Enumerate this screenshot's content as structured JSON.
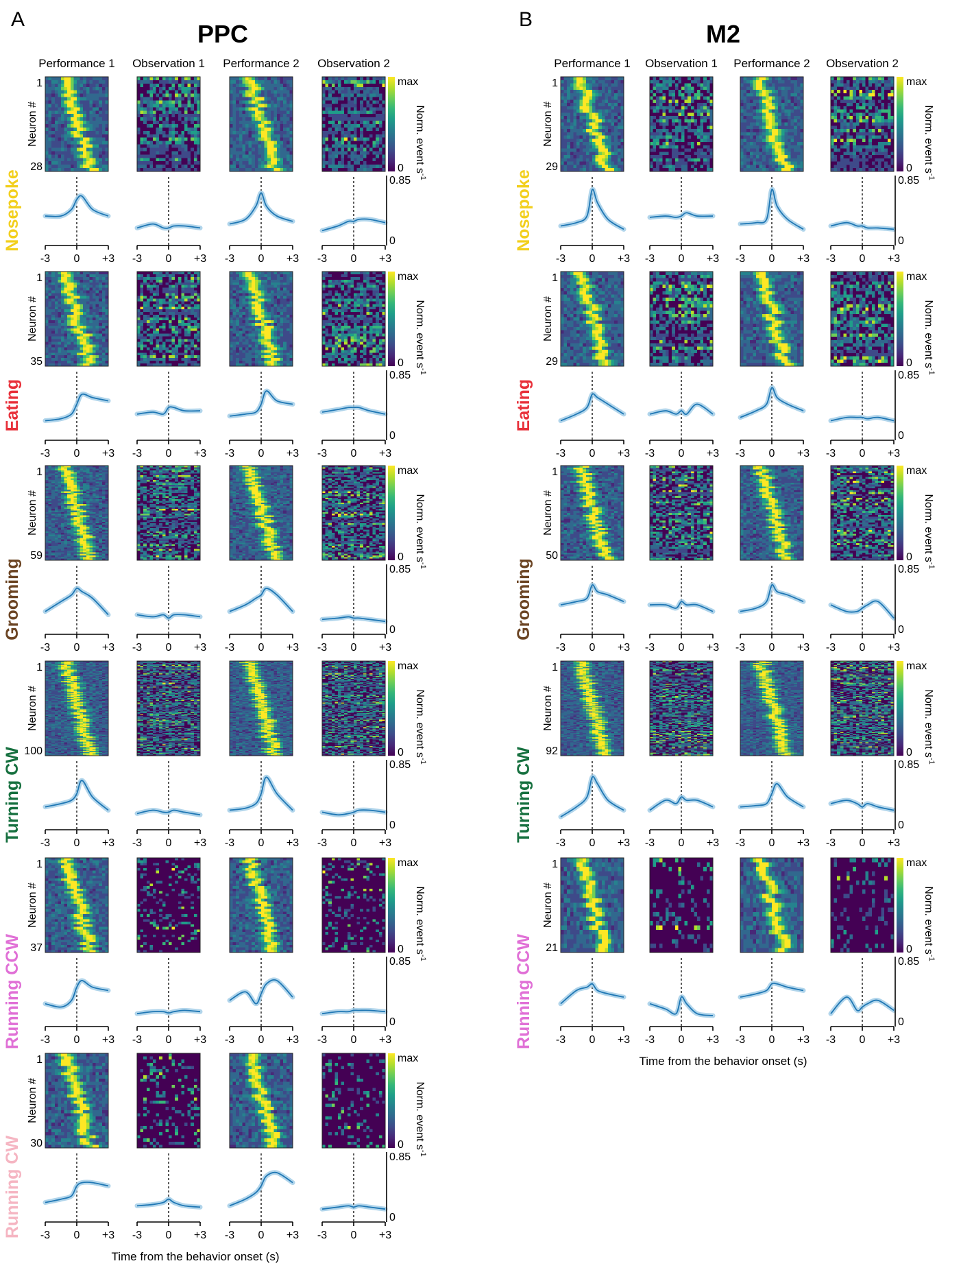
{
  "panel_letters": [
    "A",
    "B"
  ],
  "regions": [
    "PPC",
    "M2"
  ],
  "columns": [
    "Performance 1",
    "Observation 1",
    "Performance 2",
    "Observation 2"
  ],
  "behaviors": [
    {
      "name": "Nosepoke",
      "color": "#F2CF1D",
      "ppc_neurons": "28",
      "m2_neurons": "29"
    },
    {
      "name": "Eating",
      "color": "#E8303A",
      "ppc_neurons": "35",
      "m2_neurons": "29"
    },
    {
      "name": "Grooming",
      "color": "#6B4423",
      "ppc_neurons": "59",
      "m2_neurons": "50"
    },
    {
      "name": "Turning CW",
      "color": "#16703F",
      "ppc_neurons": "100",
      "m2_neurons": "92"
    },
    {
      "name": "Running CCW",
      "color": "#E070D6",
      "ppc_neurons": "37",
      "m2_neurons": "21"
    },
    {
      "name": "Running CW",
      "color": "#F5B5C2",
      "ppc_neurons": "30",
      "m2_neurons": ""
    }
  ],
  "raster_first_neuron": "1",
  "neuron_axis_label": "Neuron #",
  "colorbar": {
    "max_label": "max",
    "min_label": "0",
    "title": "Norm. event s",
    "title_superscript": "-1"
  },
  "trace": {
    "ymax_label": "0.85",
    "ymin_label": "0",
    "xticks": [
      "-3",
      "0",
      "+3"
    ],
    "line_color": "#1F77B4",
    "band_color": "#9ECAE6"
  },
  "xlabel": "Time from the behavior onset (s)",
  "colormap": "viridis",
  "chart_data": [
    {
      "type": "line",
      "region": "PPC",
      "behavior": "Nosepoke",
      "x": [
        -3,
        -1.5,
        -0.5,
        0,
        0.5,
        1.5,
        3
      ],
      "series": [
        {
          "name": "Performance 1",
          "values": [
            0.3,
            0.3,
            0.4,
            0.55,
            0.6,
            0.4,
            0.3
          ]
        },
        {
          "name": "Observation 1",
          "values": [
            0.12,
            0.18,
            0.12,
            0.12,
            0.15,
            0.15,
            0.12
          ]
        },
        {
          "name": "Performance 2",
          "values": [
            0.18,
            0.25,
            0.45,
            0.65,
            0.45,
            0.3,
            0.22
          ]
        },
        {
          "name": "Observation 2",
          "values": [
            0.08,
            0.15,
            0.22,
            0.22,
            0.25,
            0.25,
            0.2
          ]
        }
      ]
    },
    {
      "type": "line",
      "region": "PPC",
      "behavior": "Eating",
      "x": [
        -3,
        -1.5,
        -0.5,
        0,
        0.5,
        1.5,
        3
      ],
      "series": [
        {
          "name": "Performance 1",
          "values": [
            0.15,
            0.18,
            0.25,
            0.4,
            0.55,
            0.5,
            0.45
          ]
        },
        {
          "name": "Observation 1",
          "values": [
            0.25,
            0.28,
            0.25,
            0.35,
            0.35,
            0.3,
            0.3
          ]
        },
        {
          "name": "Performance 2",
          "values": [
            0.22,
            0.25,
            0.28,
            0.4,
            0.6,
            0.45,
            0.4
          ]
        },
        {
          "name": "Observation 2",
          "values": [
            0.28,
            0.32,
            0.35,
            0.35,
            0.35,
            0.3,
            0.25
          ]
        }
      ]
    },
    {
      "type": "line",
      "region": "PPC",
      "behavior": "Grooming",
      "x": [
        -3,
        -1.5,
        -0.5,
        0,
        0.5,
        1.5,
        3
      ],
      "series": [
        {
          "name": "Performance 1",
          "values": [
            0.2,
            0.35,
            0.45,
            0.55,
            0.5,
            0.4,
            0.15
          ]
        },
        {
          "name": "Observation 1",
          "values": [
            0.15,
            0.12,
            0.15,
            0.1,
            0.15,
            0.15,
            0.12
          ]
        },
        {
          "name": "Performance 2",
          "values": [
            0.2,
            0.3,
            0.4,
            0.45,
            0.55,
            0.45,
            0.2
          ]
        },
        {
          "name": "Observation 2",
          "values": [
            0.08,
            0.1,
            0.12,
            0.1,
            0.1,
            0.08,
            0.05
          ]
        }
      ]
    },
    {
      "type": "line",
      "region": "PPC",
      "behavior": "Turning CW",
      "x": [
        -3,
        -1.5,
        -0.5,
        0,
        0.5,
        1.5,
        3
      ],
      "series": [
        {
          "name": "Performance 1",
          "values": [
            0.2,
            0.25,
            0.3,
            0.4,
            0.6,
            0.35,
            0.15
          ]
        },
        {
          "name": "Observation 1",
          "values": [
            0.1,
            0.15,
            0.12,
            0.12,
            0.15,
            0.12,
            0.08
          ]
        },
        {
          "name": "Performance 2",
          "values": [
            0.15,
            0.18,
            0.25,
            0.4,
            0.65,
            0.4,
            0.15
          ]
        },
        {
          "name": "Observation 2",
          "values": [
            0.12,
            0.08,
            0.1,
            0.12,
            0.15,
            0.15,
            0.12
          ]
        }
      ]
    },
    {
      "type": "line",
      "region": "PPC",
      "behavior": "Running CCW",
      "x": [
        -3,
        -1.5,
        -0.5,
        0,
        0.5,
        1.5,
        3
      ],
      "series": [
        {
          "name": "Performance 1",
          "values": [
            0.2,
            0.15,
            0.25,
            0.45,
            0.55,
            0.45,
            0.4
          ]
        },
        {
          "name": "Observation 1",
          "values": [
            0.05,
            0.08,
            0.08,
            0.06,
            0.08,
            0.1,
            0.08
          ]
        },
        {
          "name": "Performance 2",
          "values": [
            0.25,
            0.38,
            0.2,
            0.35,
            0.5,
            0.55,
            0.3
          ]
        },
        {
          "name": "Observation 2",
          "values": [
            0.05,
            0.08,
            0.08,
            0.1,
            0.1,
            0.1,
            0.08
          ]
        }
      ]
    },
    {
      "type": "line",
      "region": "PPC",
      "behavior": "Running CW",
      "x": [
        -3,
        -1.5,
        -0.5,
        0,
        0.5,
        1.5,
        3
      ],
      "series": [
        {
          "name": "Performance 1",
          "values": [
            0.15,
            0.2,
            0.25,
            0.4,
            0.45,
            0.45,
            0.4
          ]
        },
        {
          "name": "Observation 1",
          "values": [
            0.1,
            0.12,
            0.15,
            0.2,
            0.15,
            0.1,
            0.08
          ]
        },
        {
          "name": "Performance 2",
          "values": [
            0.1,
            0.2,
            0.3,
            0.4,
            0.55,
            0.6,
            0.45
          ]
        },
        {
          "name": "Observation 2",
          "values": [
            0.05,
            0.08,
            0.1,
            0.08,
            0.1,
            0.08,
            0.05
          ]
        }
      ]
    },
    {
      "type": "line",
      "region": "M2",
      "behavior": "Nosepoke",
      "x": [
        -3,
        -1.5,
        -0.5,
        0,
        0.5,
        1.5,
        3
      ],
      "series": [
        {
          "name": "Performance 1",
          "values": [
            0.15,
            0.2,
            0.3,
            0.7,
            0.5,
            0.25,
            0.1
          ]
        },
        {
          "name": "Observation 1",
          "values": [
            0.28,
            0.3,
            0.28,
            0.3,
            0.35,
            0.3,
            0.3
          ]
        },
        {
          "name": "Performance 2",
          "values": [
            0.18,
            0.2,
            0.25,
            0.7,
            0.45,
            0.25,
            0.1
          ]
        },
        {
          "name": "Observation 2",
          "values": [
            0.15,
            0.2,
            0.15,
            0.15,
            0.12,
            0.12,
            0.1
          ]
        }
      ]
    },
    {
      "type": "line",
      "region": "M2",
      "behavior": "Eating",
      "x": [
        -3,
        -1.5,
        -0.5,
        0,
        0.5,
        1.5,
        3
      ],
      "series": [
        {
          "name": "Performance 1",
          "values": [
            0.15,
            0.25,
            0.35,
            0.55,
            0.5,
            0.4,
            0.25
          ]
        },
        {
          "name": "Observation 1",
          "values": [
            0.25,
            0.3,
            0.25,
            0.3,
            0.25,
            0.4,
            0.25
          ]
        },
        {
          "name": "Performance 2",
          "values": [
            0.2,
            0.3,
            0.4,
            0.65,
            0.5,
            0.4,
            0.3
          ]
        },
        {
          "name": "Observation 2",
          "values": [
            0.15,
            0.2,
            0.2,
            0.2,
            0.18,
            0.2,
            0.15
          ]
        }
      ]
    },
    {
      "type": "line",
      "region": "M2",
      "behavior": "Grooming",
      "x": [
        -3,
        -1.5,
        -0.5,
        0,
        0.5,
        1.5,
        3
      ],
      "series": [
        {
          "name": "Performance 1",
          "values": [
            0.3,
            0.35,
            0.4,
            0.6,
            0.5,
            0.45,
            0.35
          ]
        },
        {
          "name": "Observation 1",
          "values": [
            0.3,
            0.3,
            0.25,
            0.35,
            0.3,
            0.3,
            0.2
          ]
        },
        {
          "name": "Performance 2",
          "values": [
            0.2,
            0.25,
            0.35,
            0.6,
            0.5,
            0.45,
            0.35
          ]
        },
        {
          "name": "Observation 2",
          "values": [
            0.3,
            0.2,
            0.2,
            0.25,
            0.3,
            0.35,
            0.1
          ]
        }
      ]
    },
    {
      "type": "line",
      "region": "M2",
      "behavior": "Turning CW",
      "x": [
        -3,
        -1.5,
        -0.5,
        0,
        0.5,
        1.5,
        3
      ],
      "series": [
        {
          "name": "Performance 1",
          "values": [
            0.05,
            0.2,
            0.35,
            0.65,
            0.55,
            0.3,
            0.15
          ]
        },
        {
          "name": "Observation 1",
          "values": [
            0.15,
            0.3,
            0.25,
            0.35,
            0.3,
            0.3,
            0.2
          ]
        },
        {
          "name": "Performance 2",
          "values": [
            0.2,
            0.22,
            0.25,
            0.4,
            0.55,
            0.35,
            0.2
          ]
        },
        {
          "name": "Observation 2",
          "values": [
            0.25,
            0.3,
            0.25,
            0.2,
            0.25,
            0.2,
            0.15
          ]
        }
      ]
    },
    {
      "type": "line",
      "region": "M2",
      "behavior": "Running CCW",
      "x": [
        -3,
        -1.5,
        -0.5,
        0,
        0.5,
        1.5,
        3
      ],
      "series": [
        {
          "name": "Performance 1",
          "values": [
            0.2,
            0.4,
            0.45,
            0.5,
            0.4,
            0.35,
            0.3
          ]
        },
        {
          "name": "Observation 1",
          "values": [
            0.2,
            0.12,
            0.05,
            0.3,
            0.2,
            0.05,
            0.02
          ]
        },
        {
          "name": "Performance 2",
          "values": [
            0.3,
            0.35,
            0.4,
            0.5,
            0.5,
            0.45,
            0.4
          ]
        },
        {
          "name": "Observation 2",
          "values": [
            0.05,
            0.3,
            0.1,
            0.15,
            0.2,
            0.25,
            0.1
          ]
        }
      ]
    }
  ]
}
